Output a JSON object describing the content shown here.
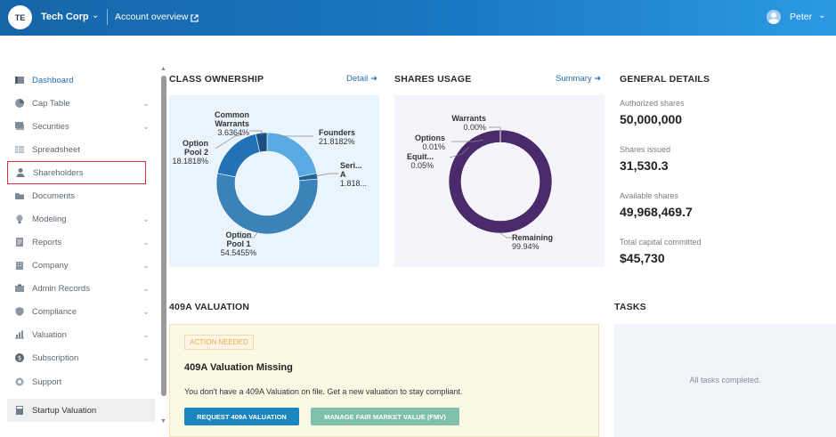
{
  "header": {
    "org_initials": "TE",
    "org_name": "Tech Corp",
    "account_link": "Account overview",
    "user_name": "Peter"
  },
  "sidebar": {
    "items": [
      {
        "label": "Dashboard",
        "icon": "dashboard-icon",
        "chevron": false
      },
      {
        "label": "Cap Table",
        "icon": "pie-chart-icon",
        "chevron": true
      },
      {
        "label": "Securities",
        "icon": "securities-icon",
        "chevron": true
      },
      {
        "label": "Spreadsheet",
        "icon": "spreadsheet-icon",
        "chevron": false
      },
      {
        "label": "Shareholders",
        "icon": "person-icon",
        "chevron": false
      },
      {
        "label": "Documents",
        "icon": "folder-icon",
        "chevron": false
      },
      {
        "label": "Modeling",
        "icon": "lightbulb-icon",
        "chevron": true
      },
      {
        "label": "Reports",
        "icon": "reports-icon",
        "chevron": true
      },
      {
        "label": "Company",
        "icon": "building-icon",
        "chevron": true
      },
      {
        "label": "Admin Records",
        "icon": "admin-icon",
        "chevron": true
      },
      {
        "label": "Compliance",
        "icon": "shield-icon",
        "chevron": true
      },
      {
        "label": "Valuation",
        "icon": "valuation-icon",
        "chevron": true
      },
      {
        "label": "Subscription",
        "icon": "dollar-icon",
        "chevron": true
      },
      {
        "label": "Support",
        "icon": "support-icon",
        "chevron": false
      },
      {
        "label": "Startup Valuation",
        "icon": "calculator-icon",
        "chevron": false
      }
    ]
  },
  "class_ownership": {
    "title": "CLASS OWNERSHIP",
    "link": "Detail",
    "slices": [
      {
        "name_lines": [
          "Founders"
        ],
        "value": "21.8182%",
        "pct": 21.8182,
        "color": "#5aabe3"
      },
      {
        "name_lines": [
          "Seri...",
          "A"
        ],
        "value": "1.818...",
        "pct": 1.8182,
        "color": "#1d5f96"
      },
      {
        "name_lines": [
          "Option",
          "Pool 1"
        ],
        "value": "54.5455%",
        "pct": 54.5455,
        "color": "#3a82b8"
      },
      {
        "name_lines": [
          "Option",
          "Pool 2"
        ],
        "value": "18.1818%",
        "pct": 18.1818,
        "color": "#2173b5"
      },
      {
        "name_lines": [
          "Common",
          "Warrants"
        ],
        "value": "3.6364%",
        "pct": 3.6364,
        "color": "#1a4f80"
      }
    ]
  },
  "shares_usage": {
    "title": "SHARES USAGE",
    "link": "Summary",
    "slices": [
      {
        "name_lines": [
          "Warrants"
        ],
        "value": "0.00%",
        "pct": 0.0,
        "color": "#4a2a6a"
      },
      {
        "name_lines": [
          "Options"
        ],
        "value": "0.01%",
        "pct": 0.01,
        "color": "#4a2a6a"
      },
      {
        "name_lines": [
          "Equit..."
        ],
        "value": "0.05%",
        "pct": 0.05,
        "color": "#4a2a6a"
      },
      {
        "name_lines": [
          "Remaining"
        ],
        "value": "99.94%",
        "pct": 99.94,
        "color": "#4a2a6a"
      }
    ]
  },
  "general_details": {
    "title": "GENERAL DETAILS",
    "items": [
      {
        "label": "Authorized shares",
        "value": "50,000,000"
      },
      {
        "label": "Shares issued",
        "value": "31,530.3"
      },
      {
        "label": "Available shares",
        "value": "49,968,469.7"
      },
      {
        "label": "Total capital committed",
        "value": "$45,730"
      }
    ]
  },
  "valuation": {
    "section_title": "409A VALUATION",
    "badge": "ACTION NEEDED",
    "title": "409A Valuation Missing",
    "text": "You don't have a 409A Valuation on file. Get a new valuation to stay compliant.",
    "primary_button": "REQUEST 409A VALUATION",
    "secondary_button": "MANAGE FAIR MARKET VALUE (FMV)"
  },
  "tasks": {
    "title": "TASKS",
    "empty": "All tasks completed."
  }
}
